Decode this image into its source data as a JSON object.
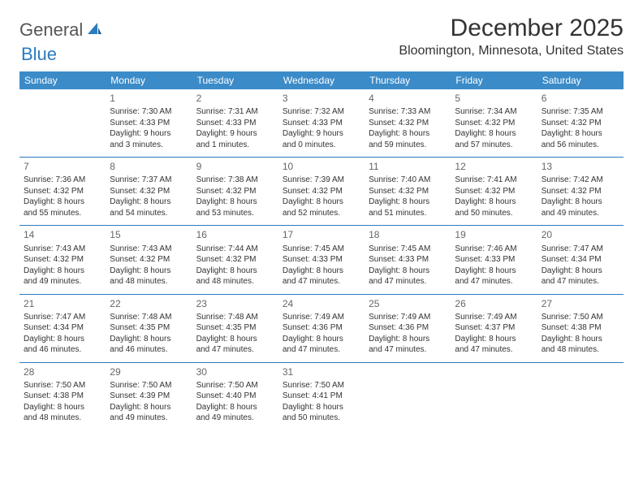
{
  "logo": {
    "text1": "General",
    "text2": "Blue"
  },
  "title": "December 2025",
  "location": "Bloomington, Minnesota, United States",
  "colors": {
    "header_bg": "#3b8bc8",
    "header_text": "#ffffff",
    "rule": "#2b7bbf",
    "body_text": "#333333",
    "daynum": "#666666",
    "logo_gray": "#555555",
    "logo_blue": "#2b7bbf",
    "page_bg": "#ffffff"
  },
  "weekdays": [
    "Sunday",
    "Monday",
    "Tuesday",
    "Wednesday",
    "Thursday",
    "Friday",
    "Saturday"
  ],
  "weeks": [
    [
      {
        "n": "",
        "lines": []
      },
      {
        "n": "1",
        "lines": [
          "Sunrise: 7:30 AM",
          "Sunset: 4:33 PM",
          "Daylight: 9 hours",
          "and 3 minutes."
        ]
      },
      {
        "n": "2",
        "lines": [
          "Sunrise: 7:31 AM",
          "Sunset: 4:33 PM",
          "Daylight: 9 hours",
          "and 1 minutes."
        ]
      },
      {
        "n": "3",
        "lines": [
          "Sunrise: 7:32 AM",
          "Sunset: 4:33 PM",
          "Daylight: 9 hours",
          "and 0 minutes."
        ]
      },
      {
        "n": "4",
        "lines": [
          "Sunrise: 7:33 AM",
          "Sunset: 4:32 PM",
          "Daylight: 8 hours",
          "and 59 minutes."
        ]
      },
      {
        "n": "5",
        "lines": [
          "Sunrise: 7:34 AM",
          "Sunset: 4:32 PM",
          "Daylight: 8 hours",
          "and 57 minutes."
        ]
      },
      {
        "n": "6",
        "lines": [
          "Sunrise: 7:35 AM",
          "Sunset: 4:32 PM",
          "Daylight: 8 hours",
          "and 56 minutes."
        ]
      }
    ],
    [
      {
        "n": "7",
        "lines": [
          "Sunrise: 7:36 AM",
          "Sunset: 4:32 PM",
          "Daylight: 8 hours",
          "and 55 minutes."
        ]
      },
      {
        "n": "8",
        "lines": [
          "Sunrise: 7:37 AM",
          "Sunset: 4:32 PM",
          "Daylight: 8 hours",
          "and 54 minutes."
        ]
      },
      {
        "n": "9",
        "lines": [
          "Sunrise: 7:38 AM",
          "Sunset: 4:32 PM",
          "Daylight: 8 hours",
          "and 53 minutes."
        ]
      },
      {
        "n": "10",
        "lines": [
          "Sunrise: 7:39 AM",
          "Sunset: 4:32 PM",
          "Daylight: 8 hours",
          "and 52 minutes."
        ]
      },
      {
        "n": "11",
        "lines": [
          "Sunrise: 7:40 AM",
          "Sunset: 4:32 PM",
          "Daylight: 8 hours",
          "and 51 minutes."
        ]
      },
      {
        "n": "12",
        "lines": [
          "Sunrise: 7:41 AM",
          "Sunset: 4:32 PM",
          "Daylight: 8 hours",
          "and 50 minutes."
        ]
      },
      {
        "n": "13",
        "lines": [
          "Sunrise: 7:42 AM",
          "Sunset: 4:32 PM",
          "Daylight: 8 hours",
          "and 49 minutes."
        ]
      }
    ],
    [
      {
        "n": "14",
        "lines": [
          "Sunrise: 7:43 AM",
          "Sunset: 4:32 PM",
          "Daylight: 8 hours",
          "and 49 minutes."
        ]
      },
      {
        "n": "15",
        "lines": [
          "Sunrise: 7:43 AM",
          "Sunset: 4:32 PM",
          "Daylight: 8 hours",
          "and 48 minutes."
        ]
      },
      {
        "n": "16",
        "lines": [
          "Sunrise: 7:44 AM",
          "Sunset: 4:32 PM",
          "Daylight: 8 hours",
          "and 48 minutes."
        ]
      },
      {
        "n": "17",
        "lines": [
          "Sunrise: 7:45 AM",
          "Sunset: 4:33 PM",
          "Daylight: 8 hours",
          "and 47 minutes."
        ]
      },
      {
        "n": "18",
        "lines": [
          "Sunrise: 7:45 AM",
          "Sunset: 4:33 PM",
          "Daylight: 8 hours",
          "and 47 minutes."
        ]
      },
      {
        "n": "19",
        "lines": [
          "Sunrise: 7:46 AM",
          "Sunset: 4:33 PM",
          "Daylight: 8 hours",
          "and 47 minutes."
        ]
      },
      {
        "n": "20",
        "lines": [
          "Sunrise: 7:47 AM",
          "Sunset: 4:34 PM",
          "Daylight: 8 hours",
          "and 47 minutes."
        ]
      }
    ],
    [
      {
        "n": "21",
        "lines": [
          "Sunrise: 7:47 AM",
          "Sunset: 4:34 PM",
          "Daylight: 8 hours",
          "and 46 minutes."
        ]
      },
      {
        "n": "22",
        "lines": [
          "Sunrise: 7:48 AM",
          "Sunset: 4:35 PM",
          "Daylight: 8 hours",
          "and 46 minutes."
        ]
      },
      {
        "n": "23",
        "lines": [
          "Sunrise: 7:48 AM",
          "Sunset: 4:35 PM",
          "Daylight: 8 hours",
          "and 47 minutes."
        ]
      },
      {
        "n": "24",
        "lines": [
          "Sunrise: 7:49 AM",
          "Sunset: 4:36 PM",
          "Daylight: 8 hours",
          "and 47 minutes."
        ]
      },
      {
        "n": "25",
        "lines": [
          "Sunrise: 7:49 AM",
          "Sunset: 4:36 PM",
          "Daylight: 8 hours",
          "and 47 minutes."
        ]
      },
      {
        "n": "26",
        "lines": [
          "Sunrise: 7:49 AM",
          "Sunset: 4:37 PM",
          "Daylight: 8 hours",
          "and 47 minutes."
        ]
      },
      {
        "n": "27",
        "lines": [
          "Sunrise: 7:50 AM",
          "Sunset: 4:38 PM",
          "Daylight: 8 hours",
          "and 48 minutes."
        ]
      }
    ],
    [
      {
        "n": "28",
        "lines": [
          "Sunrise: 7:50 AM",
          "Sunset: 4:38 PM",
          "Daylight: 8 hours",
          "and 48 minutes."
        ]
      },
      {
        "n": "29",
        "lines": [
          "Sunrise: 7:50 AM",
          "Sunset: 4:39 PM",
          "Daylight: 8 hours",
          "and 49 minutes."
        ]
      },
      {
        "n": "30",
        "lines": [
          "Sunrise: 7:50 AM",
          "Sunset: 4:40 PM",
          "Daylight: 8 hours",
          "and 49 minutes."
        ]
      },
      {
        "n": "31",
        "lines": [
          "Sunrise: 7:50 AM",
          "Sunset: 4:41 PM",
          "Daylight: 8 hours",
          "and 50 minutes."
        ]
      },
      {
        "n": "",
        "lines": []
      },
      {
        "n": "",
        "lines": []
      },
      {
        "n": "",
        "lines": []
      }
    ]
  ]
}
